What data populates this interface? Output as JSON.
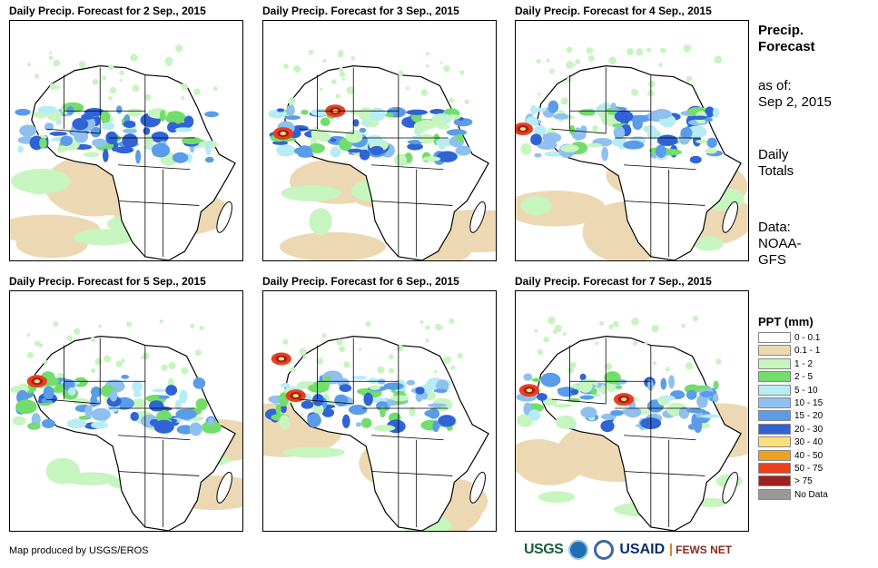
{
  "panels": [
    {
      "title": "Daily Precip. Forecast for 2 Sep., 2015"
    },
    {
      "title": "Daily Precip. Forecast for 3 Sep., 2015"
    },
    {
      "title": "Daily Precip. Forecast for 4 Sep., 2015"
    },
    {
      "title": "Daily Precip. Forecast for 5 Sep., 2015"
    },
    {
      "title": "Daily Precip. Forecast for 6 Sep., 2015"
    },
    {
      "title": "Daily Precip. Forecast for 7 Sep., 2015"
    }
  ],
  "side": {
    "heading": "Precip.\nForecast",
    "asof": "as of:\nSep 2, 2015",
    "totals": "Daily\nTotals",
    "data": "Data:\nNOAA-\nGFS"
  },
  "legend": {
    "title": "PPT (mm)",
    "items": [
      {
        "label": "0 - 0.1",
        "color": "#ffffff"
      },
      {
        "label": "0.1 - 1",
        "color": "#ecd9b3"
      },
      {
        "label": "1 - 2",
        "color": "#c7f5c0"
      },
      {
        "label": "2 - 5",
        "color": "#72dd6a"
      },
      {
        "label": "5 - 10",
        "color": "#b7ecf5"
      },
      {
        "label": "10 - 15",
        "color": "#8fc0ef"
      },
      {
        "label": "15 - 20",
        "color": "#5a9ce8"
      },
      {
        "label": "20 - 30",
        "color": "#2f63d6"
      },
      {
        "label": "30 - 40",
        "color": "#fbe07a"
      },
      {
        "label": "40 - 50",
        "color": "#f0a020"
      },
      {
        "label": "50 - 75",
        "color": "#e8401e"
      },
      {
        "label": "> 75",
        "color": "#a02020"
      },
      {
        "label": "No Data",
        "color": "#999999"
      }
    ]
  },
  "footer": {
    "credit": "Map produced by USGS/EROS",
    "logos": [
      "USGS",
      "NOAA",
      "USAID",
      "FEWS NET"
    ]
  }
}
